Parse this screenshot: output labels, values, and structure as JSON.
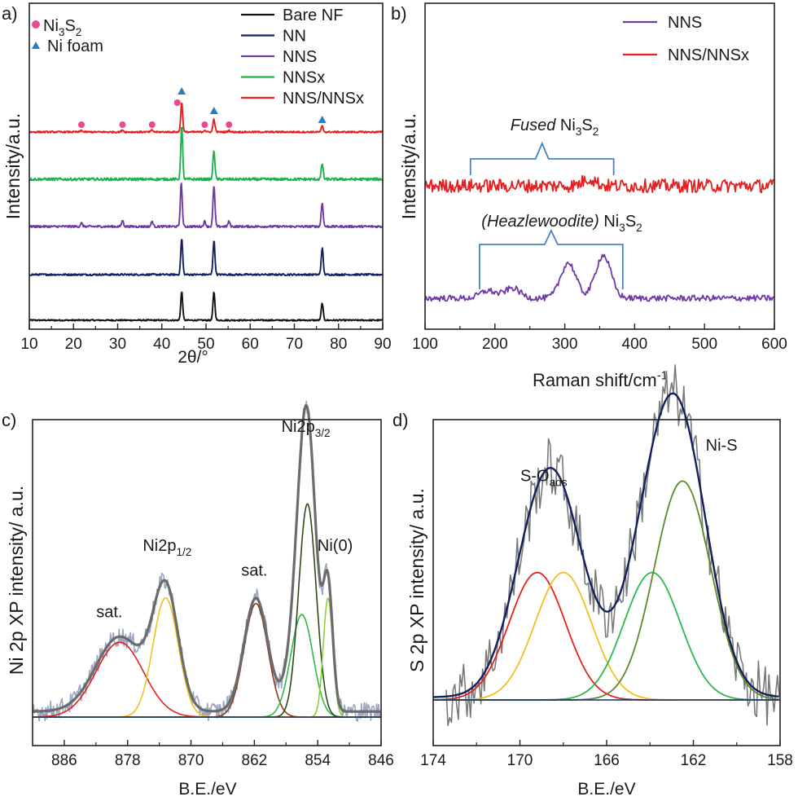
{
  "chart_data": [
    {
      "panel_label": "a)",
      "type": "line",
      "xlabel": "2θ/°",
      "ylabel": "Intensity/a.u.",
      "xlim": [
        10,
        90
      ],
      "xticks": [
        "10",
        "20",
        "30",
        "40",
        "50",
        "60",
        "70",
        "80",
        "90"
      ],
      "legend": "top-right",
      "marker_legend": [
        {
          "label_main": "Ni",
          "sub1": "3",
          "label_mid": "S",
          "sub2": "2",
          "color": "#e8498f",
          "shape": "circle"
        },
        {
          "label_main": "Ni foam",
          "color": "#2b7bbf",
          "shape": "triangle"
        }
      ],
      "series": [
        {
          "name": "Bare NF",
          "color": "#111111",
          "offset": 0,
          "peaks": [
            [
              44.5,
              1.0
            ],
            [
              51.8,
              1.0
            ],
            [
              76.3,
              0.6
            ]
          ]
        },
        {
          "name": "NN",
          "color": "#14205e",
          "offset": 1,
          "peaks": [
            [
              44.5,
              1.0
            ],
            [
              51.8,
              0.95
            ],
            [
              76.3,
              0.75
            ]
          ]
        },
        {
          "name": "NNS",
          "color": "#6f3aa8",
          "offset": 2,
          "peaks": [
            [
              21.8,
              0.08
            ],
            [
              31.1,
              0.14
            ],
            [
              37.8,
              0.12
            ],
            [
              44.4,
              1.0
            ],
            [
              49.7,
              0.12
            ],
            [
              51.8,
              0.95
            ],
            [
              55.2,
              0.12
            ],
            [
              76.3,
              0.55
            ]
          ]
        },
        {
          "name": "NNSx",
          "color": "#1fb14a",
          "offset": 3,
          "peaks": [
            [
              44.5,
              1.0
            ],
            [
              51.8,
              0.55
            ],
            [
              76.3,
              0.3
            ]
          ]
        },
        {
          "name": "NNS/NNSx",
          "color": "#e61f1f",
          "offset": 4,
          "peaks": [
            [
              21.8,
              0.05
            ],
            [
              31.1,
              0.06
            ],
            [
              37.8,
              0.06
            ],
            [
              44.5,
              0.9
            ],
            [
              49.7,
              0.06
            ],
            [
              51.8,
              0.4
            ],
            [
              55.2,
              0.05
            ],
            [
              76.3,
              0.18
            ]
          ]
        }
      ],
      "markers": [
        {
          "x": 21.8,
          "shape": "circle"
        },
        {
          "x": 31.1,
          "shape": "circle"
        },
        {
          "x": 37.8,
          "shape": "circle"
        },
        {
          "x": 43.5,
          "shape": "circle"
        },
        {
          "x": 49.7,
          "shape": "circle"
        },
        {
          "x": 55.2,
          "shape": "circle"
        },
        {
          "x": 44.5,
          "shape": "triangle"
        },
        {
          "x": 51.8,
          "shape": "triangle"
        },
        {
          "x": 76.3,
          "shape": "triangle"
        }
      ]
    },
    {
      "panel_label": "b)",
      "type": "line",
      "xlabel_main": "Raman shift/cm",
      "xlabel_sup": "-1",
      "ylabel": "Intensity/a.u.",
      "xlim": [
        100,
        600
      ],
      "xticks": [
        "100",
        "200",
        "300",
        "400",
        "500",
        "600"
      ],
      "legend": "top-right",
      "series": [
        {
          "name": "NNS",
          "color": "#6f3aa8",
          "offset": 0,
          "peaks": [
            [
              190,
              0.15
            ],
            [
              225,
              0.2
            ],
            [
              305,
              0.7
            ],
            [
              355,
              0.85
            ]
          ]
        },
        {
          "name": "NNS/NNSx",
          "color": "#e61f1f",
          "offset": 1,
          "peaks": [
            [
              335,
              0.3
            ]
          ]
        }
      ],
      "annotations": [
        {
          "italic": "Fused",
          "main": " Ni",
          "sub1": "3",
          "mid": "S",
          "sub2": "2",
          "x_start": 165,
          "x_end": 370
        },
        {
          "italic": "(Heazlewoodite)",
          "main": " Ni",
          "sub1": "3",
          "mid": "S",
          "sub2": "2",
          "x_start": 178,
          "x_end": 383
        }
      ]
    },
    {
      "panel_label": "c)",
      "type": "line",
      "xlabel": "B.E./eV",
      "ylabel": "Ni 2p XP intensity/ a.u.",
      "xlim": [
        890,
        846
      ],
      "xticks": [
        "886",
        "878",
        "870",
        "862",
        "854",
        "846"
      ],
      "xtick_values": [
        886,
        878,
        870,
        862,
        854,
        846
      ],
      "series": [
        {
          "name": "raw",
          "color": "#9aa6c2",
          "noisy": true
        },
        {
          "name": "fit envelope",
          "color": "#6b6b6b"
        },
        {
          "name": "sat. component",
          "color": "#e61f1f",
          "center": 879.0,
          "height": 0.27,
          "width": 3.0
        },
        {
          "name": "Ni2p1/2 component",
          "color": "#f0c020",
          "center": 873.2,
          "height": 0.43,
          "width": 1.6
        },
        {
          "name": "sat. component 2",
          "color": "#8b3a1a",
          "center": 861.8,
          "height": 0.41,
          "width": 1.5
        },
        {
          "name": "Ni2p3/2 component A",
          "color": "#2db84a",
          "center": 856.0,
          "height": 0.37,
          "width": 1.4
        },
        {
          "name": "Ni2p3/2 component B",
          "color": "#2f4a1a",
          "center": 855.3,
          "height": 0.77,
          "width": 1.1
        },
        {
          "name": "Ni(0) component",
          "color": "#8ecf3a",
          "center": 852.7,
          "height": 0.43,
          "width": 0.6
        }
      ],
      "labels": [
        {
          "text": "sat.",
          "x": 880.3,
          "y": 0.36
        },
        {
          "main": "Ni2p",
          "sub": "1/2",
          "x": 873.0,
          "y": 0.6
        },
        {
          "text": "sat.",
          "x": 862.0,
          "y": 0.51
        },
        {
          "main": "Ni2p",
          "sub": "3/2",
          "x": 855.5,
          "y": 1.03
        },
        {
          "text": "Ni(0)",
          "x": 851.8,
          "y": 0.6
        }
      ]
    },
    {
      "panel_label": "d)",
      "type": "line",
      "xlabel": "B.E./eV",
      "ylabel": "S 2p XP intensity/ a.u.",
      "xlim": [
        174,
        158
      ],
      "xticks": [
        "174",
        "170",
        "166",
        "162",
        "158"
      ],
      "xtick_values": [
        174,
        170,
        166,
        162,
        158
      ],
      "series": [
        {
          "name": "raw",
          "color": "#7a7a7a",
          "noisy": true
        },
        {
          "name": "fit envelope",
          "color": "#14205e"
        },
        {
          "name": "S-Oads component 1",
          "color": "#e61f1f",
          "center": 169.2,
          "height": 0.46,
          "width": 1.3
        },
        {
          "name": "S-Oads component 2",
          "color": "#f0c020",
          "center": 168.0,
          "height": 0.46,
          "width": 1.3
        },
        {
          "name": "Ni-S component 1",
          "color": "#2db84a",
          "center": 163.9,
          "height": 0.46,
          "width": 1.3
        },
        {
          "name": "Ni-S component 2",
          "color": "#5a8a2a",
          "center": 162.5,
          "height": 0.79,
          "width": 1.3
        }
      ],
      "labels": [
        {
          "main": "S-O",
          "sub": "ads",
          "x": 168.9,
          "y": 0.79
        },
        {
          "text": "Ni-S",
          "x": 160.7,
          "y": 0.9
        }
      ]
    }
  ]
}
